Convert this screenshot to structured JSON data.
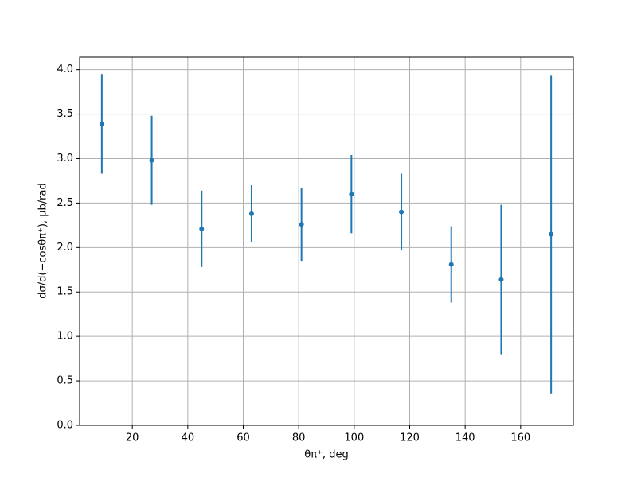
{
  "chart_data": {
    "type": "errorbar",
    "xlabel": "θπ⁺, deg",
    "ylabel": "dσ/d(−cosθπ⁺), μb/rad",
    "series": [
      {
        "color": "#1f77b4",
        "x": [
          9,
          27,
          45,
          63,
          81,
          99,
          117,
          135,
          153,
          171
        ],
        "values": [
          3.39,
          2.98,
          2.21,
          2.38,
          2.26,
          2.6,
          2.4,
          1.81,
          1.64,
          2.15
        ],
        "errors": [
          0.56,
          0.5,
          0.43,
          0.32,
          0.41,
          0.44,
          0.43,
          0.43,
          0.84,
          1.79
        ]
      }
    ],
    "xlim": [
      1,
      179
    ],
    "xticks": [
      20,
      40,
      60,
      80,
      100,
      120,
      140,
      160
    ],
    "ylim": [
      0,
      4.14
    ],
    "yticks": [
      {
        "value": 0,
        "label": "0.0"
      },
      {
        "value": 0.5,
        "label": "0.5"
      },
      {
        "value": 1,
        "label": "1.0"
      },
      {
        "value": 1.5,
        "label": "1.5"
      },
      {
        "value": 2,
        "label": "2.0"
      },
      {
        "value": 2.5,
        "label": "2.5"
      },
      {
        "value": 3,
        "label": "3.0"
      },
      {
        "value": 3.5,
        "label": "3.5"
      },
      {
        "value": 4,
        "label": "4.0"
      }
    ],
    "grid": true
  }
}
